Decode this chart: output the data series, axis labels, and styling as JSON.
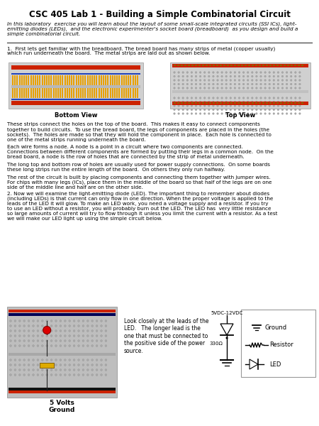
{
  "title": "CSC 405 Lab 1 - Building a Simple Combinatorial Circuit",
  "title_fontsize": 8.5,
  "intro_text": "In this laboratory  exercise you will learn about the layout of some small-scale integrated circuits (SSI ICs), light-\nemitting diodes (LEDs),  and the electronic experimenter's socket board (breadboard)  as you design and build a\nsimple combinatorial circuit.",
  "section1_header": "1.  First lets get familiar with the breadboard. The bread board has many strips of metal (copper usually)\nwhich run underneath the board.  The metal strips are laid out as shown below.",
  "bottom_view_label": "Bottom View",
  "top_view_label": "Top View",
  "para1": "These strips connect the holes on the top of the board.  This makes it easy to connect components\ntogether to build circuits.  To use the bread board, the legs of components are placed in the holes (the\nsockets).  The holes are made so that they will hold the component in place.  Each hole is connected to\none of the metal strips running underneath the board.",
  "para2": "Each wire forms a node. A node is a point in a circuit where two components are connected.\nConnections between different components are formed by putting their legs in a common node.  On the\nbread board, a node is the row of holes that are connected by the strip of metal underneath.",
  "para3": "The long top and bottom row of holes are usually used for power supply connections.  On some boards\nthese long strips run the entire length of the board.  On others they only run halfway.",
  "para4": "The rest of the circuit is built by placing components and connecting them together with jumper wires.\nFor chips with many legs (ICs), place them in the middle of the board so that half of the legs are on one\nside of the middle line and half are on the other side.",
  "section2_header": "2. Now we will examine the light-emitting diode (LED). The important thing to remember about diodes\n(including LEDs) is that current can only flow in one direction. When the proper voltage is applied to the\nleads of the LED it will glow. To make an LED work, you need a voltage supply and a resistor. If you try\nto use an LED without a resistor, you will probably burn out the LED. The LED has  very little resistance\nso large amounts of current will try to flow through it unless you limit the current with a resistor. As a test\nwe will make our LED light up using the simple circuit below.",
  "led_caption": "Look closely at the leads of the\nLED.   The longer lead is the\none that must be connected to\nthe positive side of the power\nsource.",
  "volts_label": "5 Volts\nGround",
  "circuit_label": "5VDC-12VDC",
  "resistor_val": "330Ω",
  "legend_ground": "Ground",
  "legend_resistor": "Resistor",
  "legend_led": "LED",
  "bg_color": "#ffffff",
  "text_color": "#000000"
}
